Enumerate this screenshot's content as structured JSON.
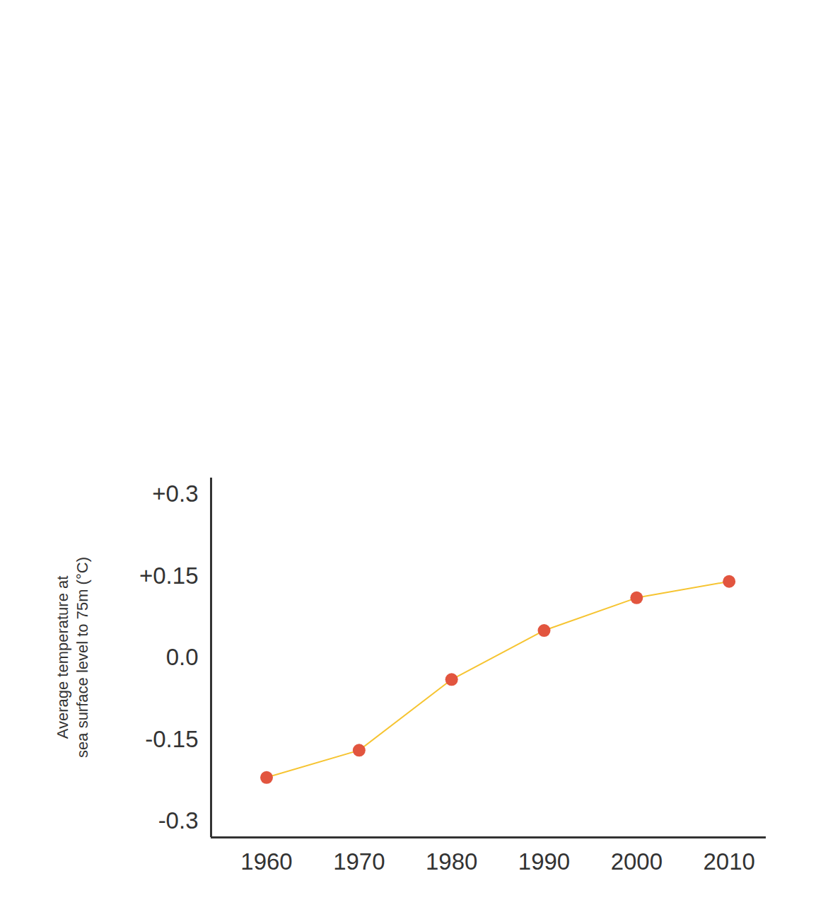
{
  "chart_data": {
    "type": "line",
    "y_label": "Average temperature at\nsea surface level to 75m (°C)",
    "x": [
      1960,
      1970,
      1980,
      1990,
      2000,
      2010
    ],
    "values": [
      -0.22,
      -0.17,
      -0.04,
      0.05,
      0.11,
      0.14
    ],
    "color": "#f6c431",
    "marker": "circle",
    "xlim": [
      1954,
      2014
    ],
    "xticks": [
      1960,
      1970,
      1980,
      1990,
      2000,
      2010
    ],
    "ylim": [
      -0.33,
      0.33
    ],
    "yticks": [
      {
        "value": -0.3,
        "label": "-0.3"
      },
      {
        "value": -0.15,
        "label": "-0.15"
      },
      {
        "value": 0,
        "label": "0.0"
      },
      {
        "value": 0.15,
        "label": "+0.15"
      },
      {
        "value": 0.3,
        "label": "+0.3"
      }
    ],
    "grid": false
  }
}
